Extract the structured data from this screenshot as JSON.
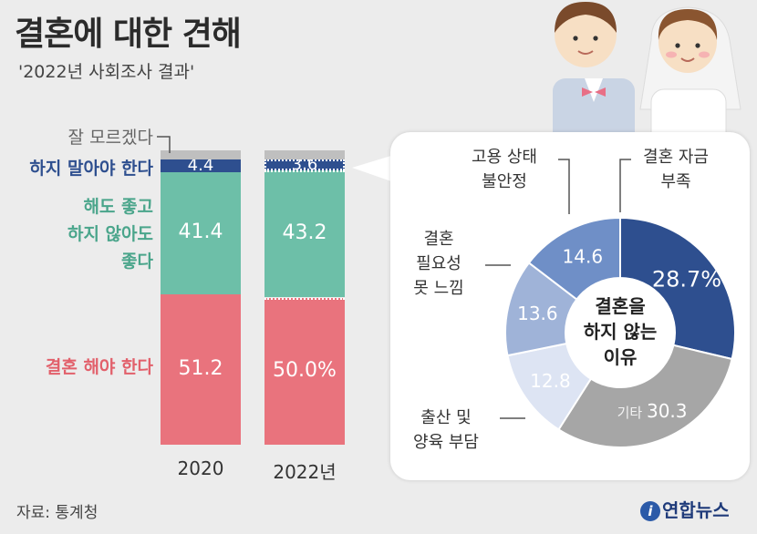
{
  "title": "결혼에 대한 견해",
  "subtitle": "'2022년 사회조사 결과'",
  "source": "자료: 통계청",
  "logo": {
    "text": "연합뉴스",
    "mark": "i"
  },
  "colors": {
    "unknown": "#bfbfbf",
    "should_not": "#2e4f8f",
    "either": "#6dbfa8",
    "should": "#e9737d",
    "pie_funds": "#2e4f8f",
    "pie_job": "#6f8fc7",
    "pie_need": "#9fb3d8",
    "pie_childbirth": "#c5d1ea",
    "pie_childcare": "#dde4f3",
    "pie_other": "#a6a6a6"
  },
  "chart_data": [
    {
      "type": "bar",
      "stacked": true,
      "categories": [
        "2020",
        "2022년"
      ],
      "series": [
        {
          "name": "결혼 해야 한다",
          "values": [
            51.2,
            50.0
          ],
          "labels": [
            "51.2",
            "50.0%"
          ]
        },
        {
          "name": "해도 좋고 하지 않아도 좋다",
          "values": [
            41.4,
            43.2
          ],
          "labels": [
            "41.4",
            "43.2"
          ]
        },
        {
          "name": "하지 말아야 한다",
          "values": [
            4.4,
            3.6
          ],
          "labels": [
            "4.4",
            "3.6"
          ]
        },
        {
          "name": "잘 모르겠다",
          "values": [
            3.0,
            3.2
          ],
          "labels": [
            "",
            ""
          ]
        }
      ],
      "ylim": [
        0,
        100
      ]
    },
    {
      "type": "pie",
      "donut": true,
      "center_label": [
        "결혼을",
        "하지 않는",
        "이유"
      ],
      "slices": [
        {
          "name": "결혼 자금 부족",
          "value": 28.7,
          "label": "28.7%"
        },
        {
          "name": "기타",
          "value": 30.3,
          "label": "30.3"
        },
        {
          "name": "출산 및 양육 부담",
          "value": 12.8,
          "label": "12.8"
        },
        {
          "name": "결혼 필요성 못 느낌",
          "value": 13.6,
          "label": "13.6"
        },
        {
          "name": "고용 상태 불안정",
          "value": 14.6,
          "label": "14.6"
        }
      ]
    }
  ],
  "bar_category_labels": {
    "unknown": "잘 모르겠다",
    "should_not": "하지 말아야 한다",
    "either": [
      "해도 좋고",
      "하지 않아도",
      "좋다"
    ],
    "should": "결혼 해야 한다"
  },
  "pie_annotations": {
    "funds": [
      "결혼 자금",
      "부족"
    ],
    "job": [
      "고용 상태",
      "불안정"
    ],
    "need": [
      "결혼",
      "필요성",
      "못 느낌"
    ],
    "birth": [
      "출산 및",
      "양육 부담"
    ],
    "other_prefix": "기타"
  }
}
